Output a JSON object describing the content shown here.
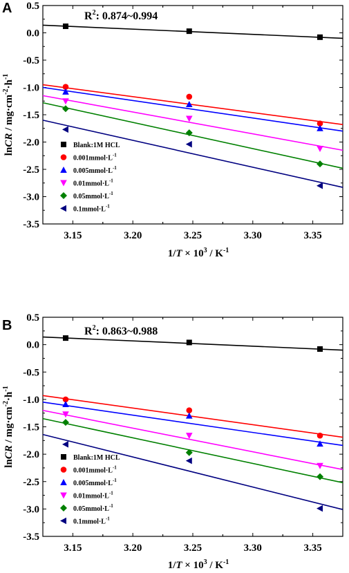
{
  "chart_data": [
    {
      "type": "scatter",
      "panel_label": "A",
      "annotation": {
        "prefix": "R",
        "sup": "2",
        "suffix": ": 0.874~0.994"
      },
      "xlabel": {
        "pre": "1/",
        "var": "T",
        "mid": " × 10",
        "sup": "3",
        "post": " / K",
        "sup2": "-1"
      },
      "ylabel": {
        "pre": "ln",
        "var": "CR",
        "mid": " / mg·cm",
        "sup": "-2",
        "mid2": "·h",
        "sup2": "-1"
      },
      "xlim": [
        3.125,
        3.375
      ],
      "ylim": [
        -3.5,
        0.5
      ],
      "xticks": [
        "3.15",
        "3.20",
        "3.25",
        "3.30",
        "3.35"
      ],
      "yticks": [
        "0.5",
        "0.0",
        "-0.5",
        "-1.0",
        "-1.5",
        "-2.0",
        "-2.5",
        "-3.0",
        "-3.5"
      ],
      "legend_position": "lower-left",
      "x": [
        3.144,
        3.247,
        3.356
      ],
      "series": [
        {
          "name": "Blank:1M HCL",
          "unit": "",
          "unit_sup": "",
          "marker": "square",
          "color": "#000000",
          "values": [
            0.12,
            0.03,
            -0.08
          ],
          "fit": [
            0.14,
            -0.1
          ]
        },
        {
          "name": "0.001mmol",
          "unit": "·L",
          "unit_sup": "-1",
          "marker": "circle",
          "color": "#ff0000",
          "values": [
            -0.99,
            -1.17,
            -1.66
          ],
          "fit": [
            -0.95,
            -1.68
          ]
        },
        {
          "name": "0.005mmol",
          "unit": "·L",
          "unit_sup": "-1",
          "marker": "triangle-up",
          "color": "#0000ff",
          "values": [
            -1.08,
            -1.31,
            -1.75
          ],
          "fit": [
            -1.0,
            -1.8
          ]
        },
        {
          "name": "0.01mmol",
          "unit": "·L",
          "unit_sup": "-1",
          "marker": "triangle-down",
          "color": "#ff00ff",
          "values": [
            -1.25,
            -1.57,
            -2.12
          ],
          "fit": [
            -1.15,
            -2.15
          ]
        },
        {
          "name": "0.05mmol",
          "unit": "·L",
          "unit_sup": "-1",
          "marker": "diamond",
          "color": "#008000",
          "values": [
            -1.39,
            -1.83,
            -2.4
          ],
          "fit": [
            -1.28,
            -2.48
          ]
        },
        {
          "name": "0.1mmol",
          "unit": "·L",
          "unit_sup": "-1",
          "marker": "triangle-left",
          "color": "#000080",
          "values": [
            -1.77,
            -2.04,
            -2.8
          ],
          "fit": [
            -1.6,
            -2.83
          ]
        }
      ]
    },
    {
      "type": "scatter",
      "panel_label": "B",
      "annotation": {
        "prefix": "R",
        "sup": "2",
        "suffix": ": 0.863~0.988"
      },
      "xlabel": {
        "pre": "1/",
        "var": "T",
        "mid": " × 10",
        "sup": "3",
        "post": " / K",
        "sup2": "-1"
      },
      "ylabel": {
        "pre": "ln",
        "var": "CR",
        "mid": " / mg·cm",
        "sup": "-2",
        "mid2": "·h",
        "sup2": "-1"
      },
      "xlim": [
        3.125,
        3.375
      ],
      "ylim": [
        -3.5,
        0.5
      ],
      "xticks": [
        "3.15",
        "3.20",
        "3.25",
        "3.30",
        "3.35"
      ],
      "yticks": [
        "0.5",
        "0.0",
        "-0.5",
        "-1.0",
        "-1.5",
        "-2.0",
        "-2.5",
        "-3.0",
        "-3.5"
      ],
      "legend_position": "lower-left",
      "x": [
        3.144,
        3.247,
        3.356
      ],
      "series": [
        {
          "name": "Blank:1M HCL",
          "unit": "",
          "unit_sup": "",
          "marker": "square",
          "color": "#000000",
          "values": [
            0.12,
            0.04,
            -0.08
          ],
          "fit": [
            0.14,
            -0.1
          ]
        },
        {
          "name": "0.001mmol",
          "unit": "·L",
          "unit_sup": "-1",
          "marker": "circle",
          "color": "#ff0000",
          "values": [
            -1.0,
            -1.2,
            -1.66
          ],
          "fit": [
            -0.93,
            -1.69
          ]
        },
        {
          "name": "0.005mmol",
          "unit": "·L",
          "unit_sup": "-1",
          "marker": "triangle-up",
          "color": "#0000ff",
          "values": [
            -1.09,
            -1.3,
            -1.81
          ],
          "fit": [
            -1.05,
            -1.84
          ]
        },
        {
          "name": "0.01mmol",
          "unit": "·L",
          "unit_sup": "-1",
          "marker": "triangle-down",
          "color": "#ff00ff",
          "values": [
            -1.27,
            -1.66,
            -2.21
          ],
          "fit": [
            -1.2,
            -2.28
          ]
        },
        {
          "name": "0.05mmol",
          "unit": "·L",
          "unit_sup": "-1",
          "marker": "diamond",
          "color": "#008000",
          "values": [
            -1.42,
            -1.97,
            -2.41
          ],
          "fit": [
            -1.35,
            -2.52
          ]
        },
        {
          "name": "0.1mmol",
          "unit": "·L",
          "unit_sup": "-1",
          "marker": "triangle-left",
          "color": "#000080",
          "values": [
            -1.82,
            -2.12,
            -2.99
          ],
          "fit": [
            -1.64,
            -3.01
          ]
        }
      ]
    }
  ]
}
